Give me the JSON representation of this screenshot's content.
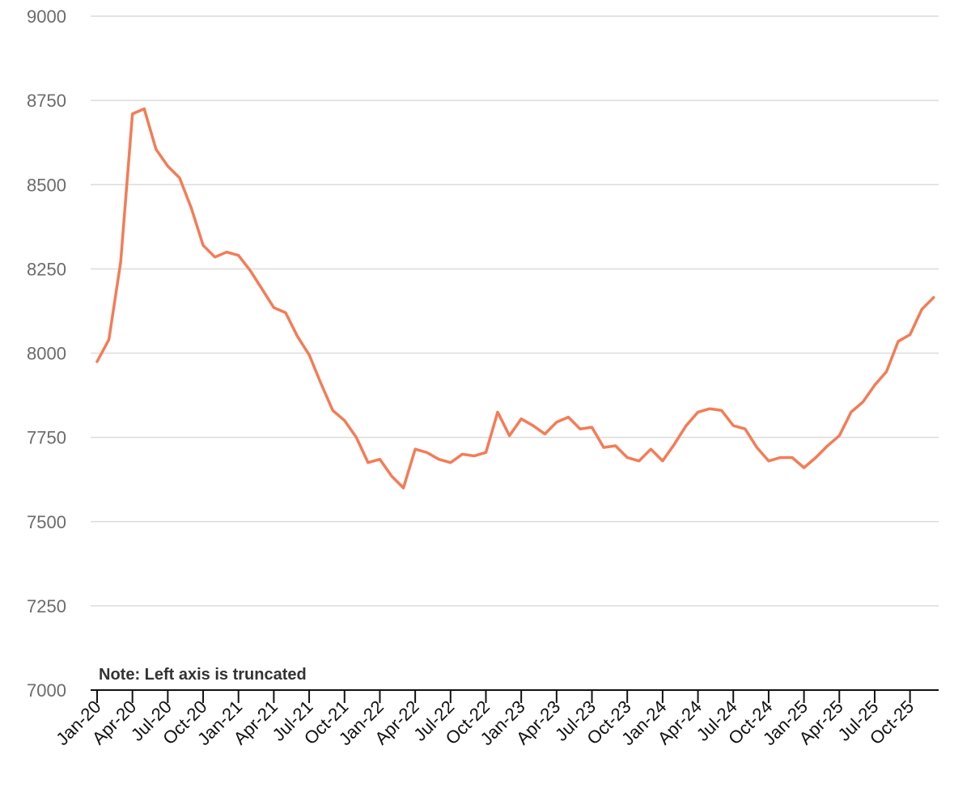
{
  "chart_data": {
    "type": "line",
    "title": "",
    "xlabel": "",
    "ylabel": "",
    "ylim": [
      7000,
      9000
    ],
    "yticks": [
      7000,
      7250,
      7500,
      7750,
      8000,
      8250,
      8500,
      8750,
      9000
    ],
    "grid": true,
    "note": "Note: Left axis is truncated",
    "color": "#f47c56",
    "xticklabels": [
      "Jan-20",
      "Apr-20",
      "Jul-20",
      "Oct-20",
      "Jan-21",
      "Apr-21",
      "Jul-21",
      "Oct-21",
      "Jan-22",
      "Apr-22",
      "Jul-22",
      "Oct-22",
      "Jan-23",
      "Apr-23",
      "Jul-23",
      "Oct-23",
      "Jan-24",
      "Apr-24",
      "Jul-24",
      "Oct-24",
      "Jan-25",
      "Apr-25",
      "Jul-25",
      "Oct-25"
    ],
    "x": [
      "Jan-20",
      "Feb-20",
      "Mar-20",
      "Apr-20",
      "May-20",
      "Jun-20",
      "Jul-20",
      "Aug-20",
      "Sep-20",
      "Oct-20",
      "Nov-20",
      "Dec-20",
      "Jan-21",
      "Feb-21",
      "Mar-21",
      "Apr-21",
      "May-21",
      "Jun-21",
      "Jul-21",
      "Aug-21",
      "Sep-21",
      "Oct-21",
      "Nov-21",
      "Dec-21",
      "Jan-22",
      "Feb-22",
      "Mar-22",
      "Apr-22",
      "May-22",
      "Jun-22",
      "Jul-22",
      "Aug-22",
      "Sep-22",
      "Oct-22",
      "Nov-22",
      "Dec-22",
      "Jan-23",
      "Feb-23",
      "Mar-23",
      "Apr-23",
      "May-23",
      "Jun-23",
      "Jul-23",
      "Aug-23",
      "Sep-23",
      "Oct-23",
      "Nov-23",
      "Dec-23",
      "Jan-24",
      "Feb-24",
      "Mar-24",
      "Apr-24",
      "May-24",
      "Jun-24",
      "Jul-24",
      "Aug-24",
      "Sep-24",
      "Oct-24",
      "Nov-24",
      "Dec-24",
      "Jan-25",
      "Feb-25",
      "Mar-25",
      "Apr-25",
      "May-25",
      "Jun-25",
      "Jul-25",
      "Aug-25",
      "Sep-25",
      "Oct-25",
      "Nov-25",
      "Dec-25"
    ],
    "series": [
      {
        "values": [
          7975,
          8040,
          8270,
          8710,
          8725,
          8605,
          8555,
          8520,
          8430,
          8320,
          8285,
          8300,
          8290,
          8245,
          8190,
          8135,
          8120,
          8050,
          7995,
          7910,
          7830,
          7800,
          7750,
          7675,
          7685,
          7635,
          7600,
          7715,
          7705,
          7685,
          7675,
          7700,
          7695,
          7705,
          7825,
          7755,
          7805,
          7785,
          7760,
          7795,
          7810,
          7775,
          7780,
          7720,
          7725,
          7690,
          7680,
          7715,
          7680,
          7730,
          7785,
          7825,
          7835,
          7830,
          7785,
          7775,
          7720,
          7680,
          7690,
          7690,
          7660,
          7690,
          7725,
          7755,
          7825,
          7855,
          7905,
          7945,
          8035,
          8055,
          8130,
          8165
        ]
      }
    ]
  }
}
